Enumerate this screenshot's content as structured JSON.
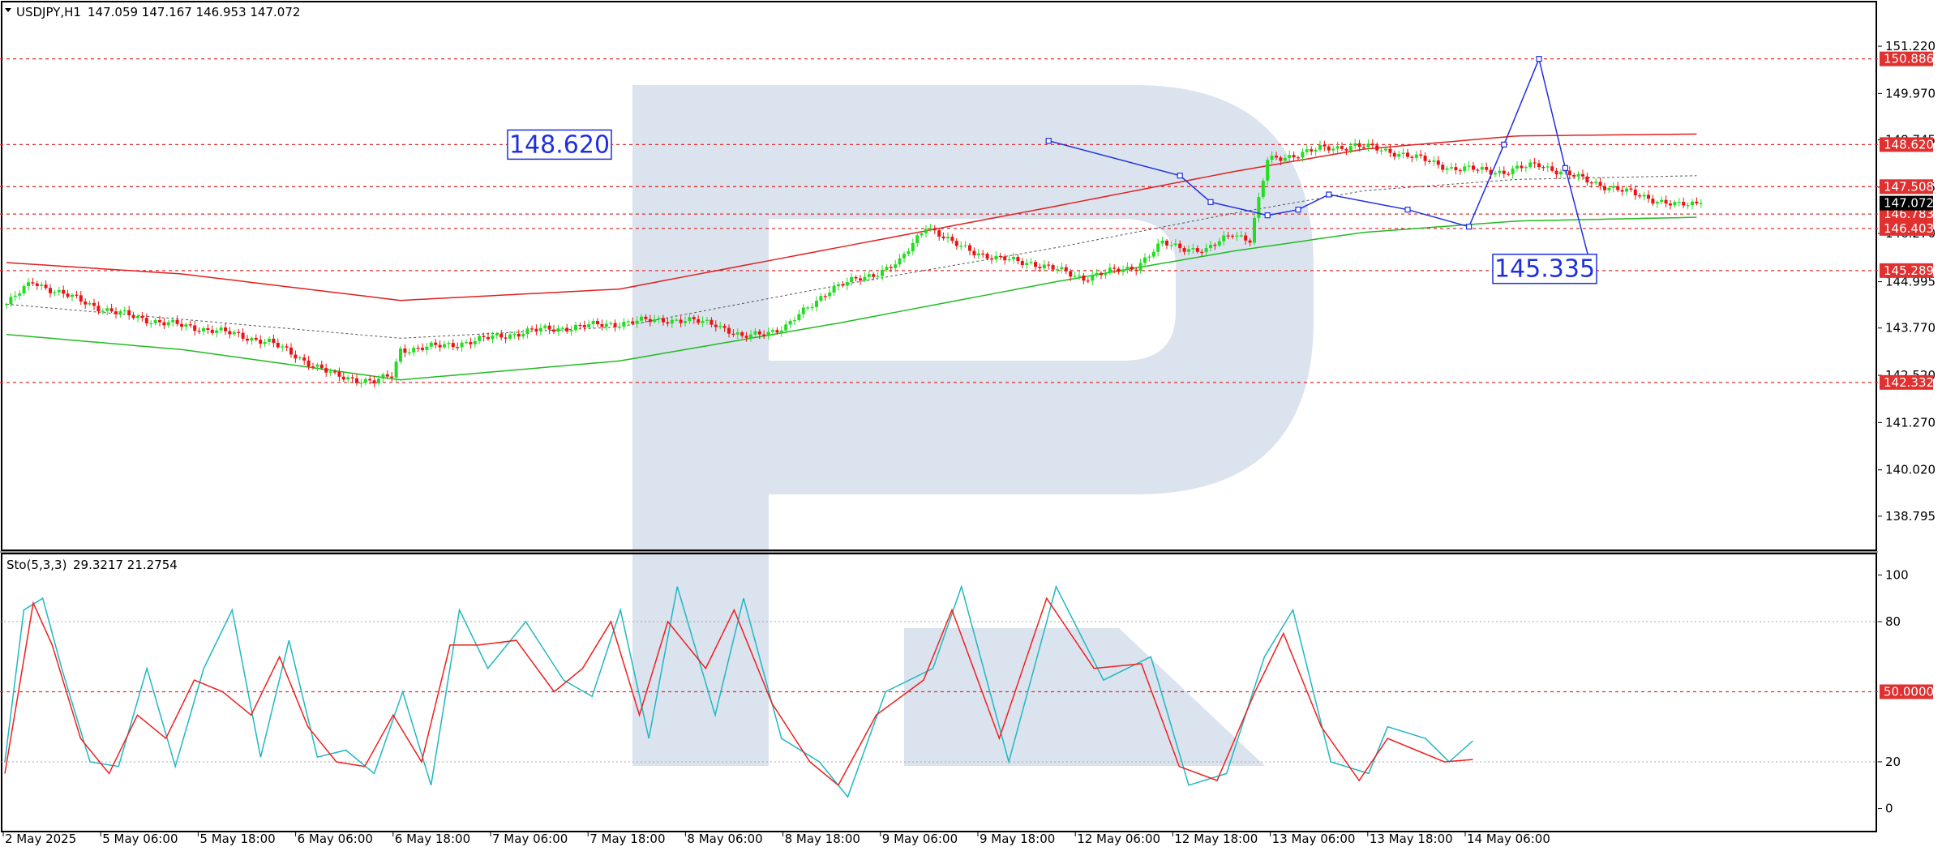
{
  "header": {
    "symbol": "USDJPY,H1",
    "ohlc": "147.059 147.167 146.953 147.072"
  },
  "stoch_header": {
    "name": "Sto(5,3,3)",
    "values": "29.3217 21.2754"
  },
  "colors": {
    "bull": "#22dd22",
    "bear": "#ee1111",
    "upper_band": "#e02020",
    "lower_band": "#22bb22",
    "forecast": "#1f2fe0",
    "stoch_main": "#20b8c0",
    "stoch_signal": "#ee2020",
    "level_line": "#e03030",
    "watermark": "#dbe3ee"
  },
  "chart_data": [
    {
      "type": "candlestick",
      "title": "USDJPY,H1",
      "price_axis_labels": [
        "151.220",
        "149.970",
        "148.745",
        "147.495",
        "146.270",
        "144.995",
        "143.770",
        "142.520",
        "141.270",
        "140.020",
        "138.795"
      ],
      "price_axis_values": [
        151.22,
        149.97,
        148.745,
        147.495,
        146.27,
        144.995,
        143.77,
        142.52,
        141.27,
        140.02,
        138.795
      ],
      "ylim": [
        138.3,
        151.8
      ],
      "time_labels": [
        "2 May 2025",
        "5 May 06:00",
        "5 May 18:00",
        "6 May 06:00",
        "6 May 18:00",
        "7 May 06:00",
        "7 May 18:00",
        "8 May 06:00",
        "8 May 18:00",
        "9 May 06:00",
        "9 May 18:00",
        "12 May 06:00",
        "12 May 18:00",
        "13 May 06:00",
        "13 May 18:00",
        "14 May 06:00"
      ],
      "levels": [
        {
          "price": 150.886,
          "label": "150.886"
        },
        {
          "price": 148.62,
          "label": "148.620"
        },
        {
          "price": 147.508,
          "label": "147.508"
        },
        {
          "price": 146.783,
          "label": "146.783"
        },
        {
          "price": 146.403,
          "label": "146.403"
        },
        {
          "price": 145.289,
          "label": "145.289"
        },
        {
          "price": 142.332,
          "label": "142.332"
        }
      ],
      "current_price": {
        "price": 147.072,
        "label": "147.072"
      },
      "annotations": [
        {
          "text": "148.620",
          "price": 148.62
        },
        {
          "text": "145.335",
          "price": 145.335
        }
      ],
      "close_anchors": [
        [
          0,
          144.4
        ],
        [
          6,
          145.0
        ],
        [
          12,
          144.7
        ],
        [
          24,
          144.2
        ],
        [
          36,
          143.9
        ],
        [
          48,
          143.7
        ],
        [
          60,
          143.4
        ],
        [
          70,
          142.8
        ],
        [
          75,
          142.5
        ],
        [
          84,
          142.35
        ],
        [
          88,
          142.5
        ],
        [
          90,
          143.2
        ],
        [
          100,
          143.3
        ],
        [
          110,
          143.5
        ],
        [
          120,
          143.7
        ],
        [
          130,
          143.8
        ],
        [
          140,
          143.9
        ],
        [
          150,
          144.0
        ],
        [
          162,
          143.9
        ],
        [
          168,
          143.5
        ],
        [
          178,
          143.8
        ],
        [
          188,
          144.8
        ],
        [
          198,
          145.2
        ],
        [
          204,
          145.5
        ],
        [
          210,
          146.5
        ],
        [
          216,
          146.0
        ],
        [
          226,
          145.6
        ],
        [
          234,
          145.5
        ],
        [
          246,
          145.1
        ],
        [
          258,
          145.4
        ],
        [
          264,
          146.0
        ],
        [
          274,
          145.8
        ],
        [
          280,
          146.3
        ],
        [
          284,
          146.1
        ],
        [
          288,
          148.2
        ],
        [
          300,
          148.5
        ],
        [
          308,
          148.6
        ],
        [
          318,
          148.4
        ],
        [
          330,
          148.0
        ],
        [
          342,
          147.9
        ],
        [
          350,
          148.1
        ],
        [
          360,
          147.7
        ],
        [
          372,
          147.3
        ],
        [
          382,
          147.0
        ],
        [
          387,
          147.07
        ]
      ],
      "upper_band": [
        [
          0,
          145.5
        ],
        [
          40,
          145.2
        ],
        [
          90,
          144.5
        ],
        [
          140,
          144.8
        ],
        [
          190,
          145.9
        ],
        [
          240,
          147.0
        ],
        [
          280,
          147.9
        ],
        [
          310,
          148.5
        ],
        [
          345,
          148.85
        ],
        [
          387,
          148.9
        ]
      ],
      "middle_band": [
        [
          0,
          144.4
        ],
        [
          40,
          144.0
        ],
        [
          90,
          143.5
        ],
        [
          140,
          143.8
        ],
        [
          190,
          144.9
        ],
        [
          240,
          145.9
        ],
        [
          280,
          146.8
        ],
        [
          310,
          147.4
        ],
        [
          345,
          147.7
        ],
        [
          387,
          147.8
        ]
      ],
      "lower_band": [
        [
          0,
          143.6
        ],
        [
          40,
          143.2
        ],
        [
          90,
          142.4
        ],
        [
          140,
          142.9
        ],
        [
          190,
          143.9
        ],
        [
          240,
          145.0
        ],
        [
          280,
          145.8
        ],
        [
          310,
          146.3
        ],
        [
          345,
          146.6
        ],
        [
          387,
          146.7
        ]
      ],
      "forecast_path": [
        [
          238,
          148.72
        ],
        [
          268,
          147.8
        ],
        [
          275,
          147.1
        ],
        [
          288,
          146.75
        ],
        [
          295,
          146.9
        ],
        [
          302,
          147.3
        ],
        [
          320,
          146.9
        ],
        [
          334,
          146.45
        ],
        [
          342,
          148.62
        ],
        [
          350,
          150.886
        ],
        [
          356,
          148.0
        ],
        [
          362,
          145.335
        ]
      ]
    },
    {
      "type": "line",
      "title": "Sto(5,3,3)",
      "ylim": [
        -5,
        105
      ],
      "axis_labels": [
        "100",
        "80",
        "50.0000",
        "20",
        "0"
      ],
      "axis_values": [
        100,
        80,
        50,
        20,
        0
      ],
      "highlight_level": {
        "value": 50,
        "label": "50.0000"
      },
      "dotted_levels": [
        80,
        20
      ],
      "series": [
        {
          "name": "main",
          "values": [
            [
              0,
              20
            ],
            [
              4,
              85
            ],
            [
              8,
              90
            ],
            [
              12,
              60
            ],
            [
              18,
              20
            ],
            [
              24,
              18
            ],
            [
              30,
              60
            ],
            [
              36,
              18
            ],
            [
              42,
              60
            ],
            [
              48,
              85
            ],
            [
              54,
              22
            ],
            [
              60,
              72
            ],
            [
              66,
              22
            ],
            [
              72,
              25
            ],
            [
              78,
              15
            ],
            [
              84,
              50
            ],
            [
              90,
              10
            ],
            [
              96,
              85
            ],
            [
              102,
              60
            ],
            [
              110,
              80
            ],
            [
              118,
              55
            ],
            [
              124,
              48
            ],
            [
              130,
              85
            ],
            [
              136,
              30
            ],
            [
              142,
              95
            ],
            [
              150,
              40
            ],
            [
              156,
              90
            ],
            [
              164,
              30
            ],
            [
              172,
              20
            ],
            [
              178,
              5
            ],
            [
              186,
              50
            ],
            [
              196,
              60
            ],
            [
              202,
              95
            ],
            [
              212,
              20
            ],
            [
              222,
              95
            ],
            [
              232,
              55
            ],
            [
              242,
              65
            ],
            [
              250,
              10
            ],
            [
              258,
              15
            ],
            [
              266,
              65
            ],
            [
              272,
              85
            ],
            [
              280,
              20
            ],
            [
              288,
              15
            ],
            [
              292,
              35
            ],
            [
              300,
              30
            ],
            [
              305,
              20
            ],
            [
              310,
              29
            ]
          ]
        },
        {
          "name": "signal",
          "values": [
            [
              0,
              15
            ],
            [
              6,
              88
            ],
            [
              10,
              70
            ],
            [
              16,
              30
            ],
            [
              22,
              15
            ],
            [
              28,
              40
            ],
            [
              34,
              30
            ],
            [
              40,
              55
            ],
            [
              46,
              50
            ],
            [
              52,
              40
            ],
            [
              58,
              65
            ],
            [
              64,
              35
            ],
            [
              70,
              20
            ],
            [
              76,
              18
            ],
            [
              82,
              40
            ],
            [
              88,
              20
            ],
            [
              94,
              70
            ],
            [
              100,
              70
            ],
            [
              108,
              72
            ],
            [
              116,
              50
            ],
            [
              122,
              60
            ],
            [
              128,
              80
            ],
            [
              134,
              40
            ],
            [
              140,
              80
            ],
            [
              148,
              60
            ],
            [
              154,
              85
            ],
            [
              162,
              45
            ],
            [
              170,
              20
            ],
            [
              176,
              10
            ],
            [
              184,
              40
            ],
            [
              194,
              55
            ],
            [
              200,
              85
            ],
            [
              210,
              30
            ],
            [
              220,
              90
            ],
            [
              230,
              60
            ],
            [
              240,
              62
            ],
            [
              248,
              18
            ],
            [
              256,
              12
            ],
            [
              264,
              50
            ],
            [
              270,
              75
            ],
            [
              278,
              35
            ],
            [
              286,
              12
            ],
            [
              292,
              30
            ],
            [
              298,
              25
            ],
            [
              304,
              20
            ],
            [
              310,
              21
            ]
          ]
        }
      ]
    }
  ]
}
